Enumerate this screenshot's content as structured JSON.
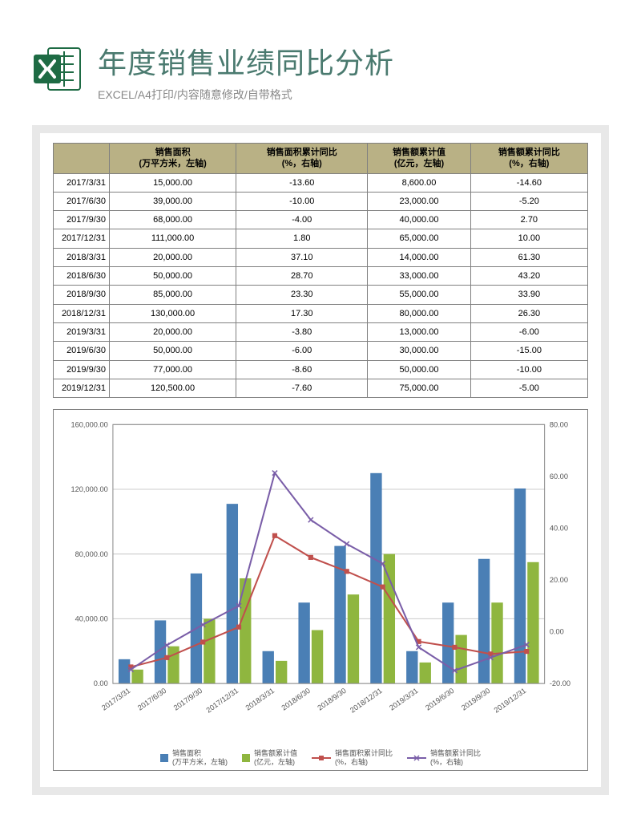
{
  "header": {
    "title": "年度销售业绩同比分析",
    "subtitle": "EXCEL/A4打印/内容随意修改/自带格式"
  },
  "table": {
    "columns": [
      "销售面积\n(万平方米，左轴)",
      "销售面积累计同比\n(%，右轴)",
      "销售额累计值\n(亿元，左轴)",
      "销售额累计同比\n(%，右轴)"
    ],
    "rows": [
      {
        "date": "2017/3/31",
        "area": "15,000.00",
        "areaYoY": "-13.60",
        "amount": "8,600.00",
        "amountYoY": "-14.60"
      },
      {
        "date": "2017/6/30",
        "area": "39,000.00",
        "areaYoY": "-10.00",
        "amount": "23,000.00",
        "amountYoY": "-5.20"
      },
      {
        "date": "2017/9/30",
        "area": "68,000.00",
        "areaYoY": "-4.00",
        "amount": "40,000.00",
        "amountYoY": "2.70"
      },
      {
        "date": "2017/12/31",
        "area": "111,000.00",
        "areaYoY": "1.80",
        "amount": "65,000.00",
        "amountYoY": "10.00"
      },
      {
        "date": "2018/3/31",
        "area": "20,000.00",
        "areaYoY": "37.10",
        "amount": "14,000.00",
        "amountYoY": "61.30"
      },
      {
        "date": "2018/6/30",
        "area": "50,000.00",
        "areaYoY": "28.70",
        "amount": "33,000.00",
        "amountYoY": "43.20"
      },
      {
        "date": "2018/9/30",
        "area": "85,000.00",
        "areaYoY": "23.30",
        "amount": "55,000.00",
        "amountYoY": "33.90"
      },
      {
        "date": "2018/12/31",
        "area": "130,000.00",
        "areaYoY": "17.30",
        "amount": "80,000.00",
        "amountYoY": "26.30"
      },
      {
        "date": "2019/3/31",
        "area": "20,000.00",
        "areaYoY": "-3.80",
        "amount": "13,000.00",
        "amountYoY": "-6.00"
      },
      {
        "date": "2019/6/30",
        "area": "50,000.00",
        "areaYoY": "-6.00",
        "amount": "30,000.00",
        "amountYoY": "-15.00"
      },
      {
        "date": "2019/9/30",
        "area": "77,000.00",
        "areaYoY": "-8.60",
        "amount": "50,000.00",
        "amountYoY": "-10.00"
      },
      {
        "date": "2019/12/31",
        "area": "120,500.00",
        "areaYoY": "-7.60",
        "amount": "75,000.00",
        "amountYoY": "-5.00"
      }
    ]
  },
  "chart": {
    "categories": [
      "2017/3/31",
      "2017/6/30",
      "2017/9/30",
      "2017/12/31",
      "2018/3/31",
      "2018/6/30",
      "2018/9/30",
      "2018/12/31",
      "2019/3/31",
      "2019/6/30",
      "2019/9/30",
      "2019/12/31"
    ],
    "series": {
      "area_bars": {
        "values": [
          15000,
          39000,
          68000,
          111000,
          20000,
          50000,
          85000,
          130000,
          20000,
          50000,
          77000,
          120500
        ],
        "color": "#4a7fb5"
      },
      "amount_bars": {
        "values": [
          8600,
          23000,
          40000,
          65000,
          14000,
          33000,
          55000,
          80000,
          13000,
          30000,
          50000,
          75000
        ],
        "color": "#8fb63f"
      },
      "area_yoy_line": {
        "values": [
          -13.6,
          -10.0,
          -4.0,
          1.8,
          37.1,
          28.7,
          23.3,
          17.3,
          -3.8,
          -6.0,
          -8.6,
          -7.6
        ],
        "color": "#c0504d",
        "marker": "square"
      },
      "amount_yoy_line": {
        "values": [
          -14.6,
          -5.2,
          2.7,
          10.0,
          61.3,
          43.2,
          33.9,
          26.3,
          -6.0,
          -15.0,
          -10.0,
          -5.0
        ],
        "color": "#7a5ea8",
        "marker": "x"
      }
    },
    "left_axis": {
      "min": 0,
      "max": 160000,
      "step": 40000,
      "ticks": [
        "0.00",
        "40,000.00",
        "80,000.00",
        "120,000.00",
        "160,000.00"
      ]
    },
    "right_axis": {
      "min": -20,
      "max": 80,
      "step": 20,
      "ticks": [
        "-20.00",
        "0.00",
        "20.00",
        "40.00",
        "60.00",
        "80.00"
      ]
    },
    "plot_border_color": "#888888",
    "grid_color": "#cccccc",
    "tick_font_size": 9,
    "legend": [
      {
        "label": "销售面积\n(万平方米，左轴)",
        "type": "bar",
        "color": "#4a7fb5"
      },
      {
        "label": "销售额累计值\n(亿元，左轴)",
        "type": "bar",
        "color": "#8fb63f"
      },
      {
        "label": "销售面积累计同比\n(%，右轴)",
        "type": "line-sq",
        "color": "#c0504d"
      },
      {
        "label": "销售额累计同比\n(%，右轴)",
        "type": "line-x",
        "color": "#7a5ea8"
      }
    ]
  }
}
